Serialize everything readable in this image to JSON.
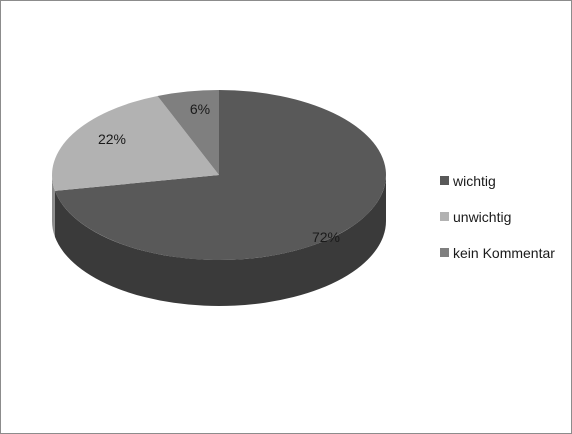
{
  "chart_data": {
    "type": "pie",
    "style": "3d",
    "slices": [
      {
        "name": "wichtig",
        "value": 72,
        "label": "72%",
        "color": "#595959",
        "side_color": "#3a3a3a"
      },
      {
        "name": "unwichtig",
        "value": 22,
        "label": "22%",
        "color": "#b2b2b2",
        "side_color": "#8c8c8c"
      },
      {
        "name": "kein Kommentar",
        "value": 6,
        "label": "6%",
        "color": "#7f7f7f",
        "side_color": "#5c5c5c"
      }
    ],
    "legend_position": "right"
  }
}
